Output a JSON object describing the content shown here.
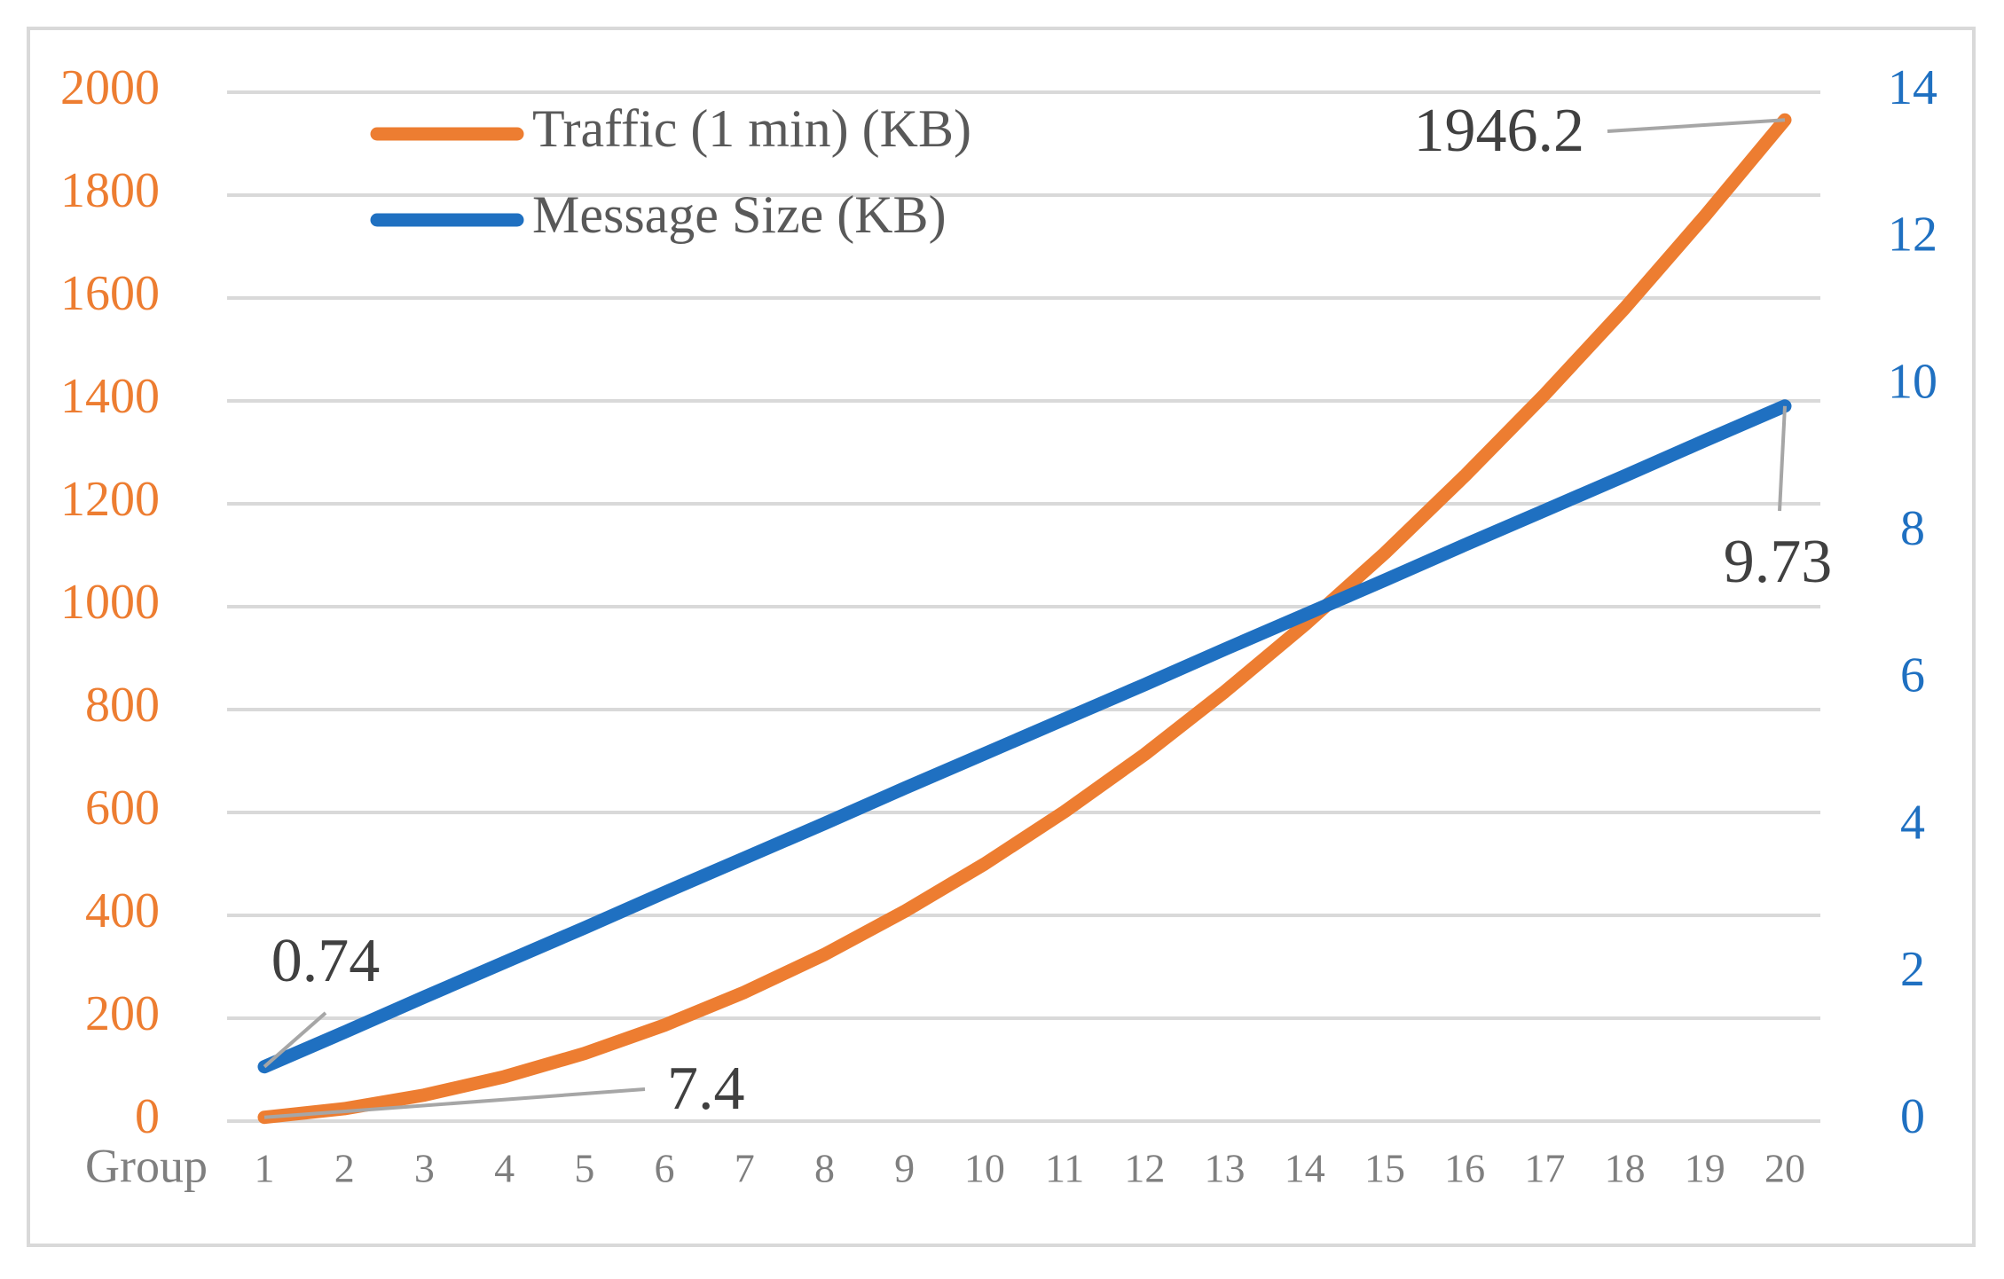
{
  "chart_data": {
    "type": "line",
    "x_label": "Group",
    "categories": [
      "1",
      "2",
      "3",
      "4",
      "5",
      "6",
      "7",
      "8",
      "9",
      "10",
      "11",
      "12",
      "13",
      "14",
      "15",
      "16",
      "17",
      "18",
      "19",
      "20"
    ],
    "series": [
      {
        "name": "Traffic (1 min) (KB)",
        "color": "#ED7D31",
        "axis": "y",
        "values": [
          7.4,
          24.2,
          50.7,
          86.4,
          131.5,
          186.6,
          250.6,
          324,
          407.7,
          500,
          601.7,
          712.8,
          834.6,
          964.6,
          1104,
          1254.4,
          1412.7,
          1580.4,
          1759.4,
          1946.2
        ]
      },
      {
        "name": "Message Size (KB)",
        "color": "#1F70C1",
        "axis": "y2",
        "values": [
          0.74,
          1.21,
          1.69,
          2.16,
          2.63,
          3.11,
          3.58,
          4.05,
          4.53,
          5.0,
          5.47,
          5.94,
          6.42,
          6.89,
          7.36,
          7.84,
          8.31,
          8.78,
          9.26,
          9.73
        ]
      }
    ],
    "ylim": [
      0,
      2000
    ],
    "yticks": [
      0,
      200,
      400,
      600,
      800,
      1000,
      1200,
      1400,
      1600,
      1800,
      2000
    ],
    "y2lim": [
      0,
      14
    ],
    "y2ticks": [
      0,
      2,
      4,
      6,
      8,
      10,
      12,
      14
    ],
    "grid": true
  }
}
